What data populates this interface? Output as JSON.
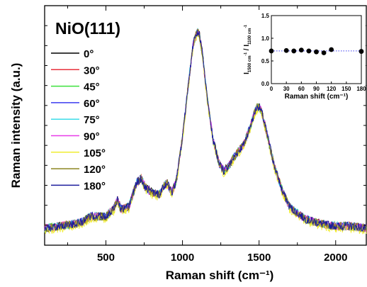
{
  "chart_data": [
    {
      "type": "line",
      "title": "NiO(111)",
      "xlabel": "Raman shift (cm⁻¹)",
      "ylabel": "Raman intensity (a.u.)",
      "xlim": [
        100,
        2200
      ],
      "xticks": [
        500,
        1000,
        1500,
        2000
      ],
      "ylim": [
        0,
        1
      ],
      "yticks_labeled": false,
      "grid": false,
      "legend_position": "left",
      "x": [
        100,
        200,
        300,
        350,
        400,
        450,
        500,
        550,
        575,
        600,
        650,
        700,
        730,
        760,
        800,
        850,
        880,
        900,
        930,
        960,
        1000,
        1040,
        1070,
        1090,
        1100,
        1110,
        1130,
        1160,
        1200,
        1240,
        1270,
        1300,
        1350,
        1400,
        1450,
        1480,
        1500,
        1520,
        1550,
        1600,
        1650,
        1700,
        1800,
        1900,
        2000,
        2100,
        2200
      ],
      "series": [
        {
          "name": "0°",
          "color": "#000000",
          "values": [
            0.07,
            0.08,
            0.09,
            0.1,
            0.12,
            0.12,
            0.12,
            0.15,
            0.19,
            0.15,
            0.16,
            0.26,
            0.28,
            0.24,
            0.22,
            0.21,
            0.25,
            0.26,
            0.22,
            0.27,
            0.45,
            0.68,
            0.84,
            0.88,
            0.89,
            0.88,
            0.8,
            0.62,
            0.44,
            0.34,
            0.31,
            0.33,
            0.38,
            0.42,
            0.51,
            0.57,
            0.58,
            0.55,
            0.47,
            0.33,
            0.23,
            0.16,
            0.11,
            0.09,
            0.08,
            0.08,
            0.07
          ]
        },
        {
          "name": "30°",
          "color": "#e8323c",
          "values": [
            0.07,
            0.08,
            0.09,
            0.1,
            0.12,
            0.12,
            0.12,
            0.15,
            0.19,
            0.15,
            0.16,
            0.26,
            0.28,
            0.24,
            0.22,
            0.21,
            0.25,
            0.26,
            0.22,
            0.27,
            0.45,
            0.68,
            0.84,
            0.88,
            0.89,
            0.88,
            0.8,
            0.62,
            0.44,
            0.34,
            0.31,
            0.33,
            0.38,
            0.42,
            0.51,
            0.57,
            0.58,
            0.55,
            0.47,
            0.33,
            0.23,
            0.16,
            0.11,
            0.09,
            0.08,
            0.08,
            0.07
          ]
        },
        {
          "name": "45°",
          "color": "#3ce03c",
          "values": [
            0.07,
            0.08,
            0.09,
            0.1,
            0.12,
            0.12,
            0.12,
            0.15,
            0.19,
            0.15,
            0.16,
            0.26,
            0.28,
            0.24,
            0.22,
            0.21,
            0.25,
            0.26,
            0.22,
            0.27,
            0.45,
            0.68,
            0.84,
            0.88,
            0.89,
            0.88,
            0.8,
            0.62,
            0.44,
            0.34,
            0.31,
            0.33,
            0.38,
            0.42,
            0.51,
            0.57,
            0.58,
            0.55,
            0.47,
            0.33,
            0.23,
            0.16,
            0.11,
            0.09,
            0.08,
            0.08,
            0.07
          ]
        },
        {
          "name": "60°",
          "color": "#3c3cf0",
          "values": [
            0.07,
            0.08,
            0.09,
            0.1,
            0.12,
            0.12,
            0.12,
            0.15,
            0.19,
            0.15,
            0.16,
            0.26,
            0.28,
            0.24,
            0.22,
            0.21,
            0.25,
            0.26,
            0.22,
            0.27,
            0.45,
            0.68,
            0.84,
            0.88,
            0.89,
            0.88,
            0.8,
            0.62,
            0.44,
            0.34,
            0.31,
            0.33,
            0.38,
            0.42,
            0.51,
            0.57,
            0.58,
            0.55,
            0.47,
            0.33,
            0.23,
            0.16,
            0.11,
            0.09,
            0.08,
            0.08,
            0.07
          ]
        },
        {
          "name": "75°",
          "color": "#3cdce8",
          "values": [
            0.07,
            0.08,
            0.09,
            0.1,
            0.12,
            0.12,
            0.12,
            0.15,
            0.19,
            0.15,
            0.16,
            0.26,
            0.28,
            0.24,
            0.22,
            0.21,
            0.25,
            0.26,
            0.22,
            0.27,
            0.45,
            0.68,
            0.84,
            0.88,
            0.89,
            0.88,
            0.8,
            0.62,
            0.44,
            0.34,
            0.31,
            0.33,
            0.38,
            0.42,
            0.51,
            0.57,
            0.58,
            0.55,
            0.47,
            0.33,
            0.23,
            0.16,
            0.11,
            0.09,
            0.08,
            0.08,
            0.07
          ]
        },
        {
          "name": "90°",
          "color": "#e83ce8",
          "values": [
            0.07,
            0.08,
            0.09,
            0.1,
            0.12,
            0.12,
            0.12,
            0.15,
            0.19,
            0.15,
            0.16,
            0.26,
            0.28,
            0.24,
            0.22,
            0.21,
            0.25,
            0.26,
            0.22,
            0.27,
            0.45,
            0.68,
            0.84,
            0.88,
            0.89,
            0.88,
            0.8,
            0.62,
            0.44,
            0.34,
            0.31,
            0.33,
            0.38,
            0.42,
            0.51,
            0.57,
            0.58,
            0.55,
            0.47,
            0.33,
            0.23,
            0.16,
            0.11,
            0.09,
            0.08,
            0.08,
            0.07
          ]
        },
        {
          "name": "105°",
          "color": "#f0ec30",
          "values": [
            0.06,
            0.07,
            0.08,
            0.09,
            0.11,
            0.11,
            0.11,
            0.14,
            0.18,
            0.14,
            0.15,
            0.25,
            0.27,
            0.23,
            0.21,
            0.2,
            0.24,
            0.25,
            0.21,
            0.26,
            0.44,
            0.67,
            0.83,
            0.87,
            0.88,
            0.87,
            0.79,
            0.61,
            0.43,
            0.33,
            0.3,
            0.32,
            0.37,
            0.41,
            0.5,
            0.56,
            0.57,
            0.54,
            0.46,
            0.32,
            0.22,
            0.15,
            0.1,
            0.08,
            0.07,
            0.07,
            0.06
          ]
        },
        {
          "name": "120°",
          "color": "#8c8420",
          "values": [
            0.07,
            0.08,
            0.09,
            0.1,
            0.12,
            0.12,
            0.12,
            0.15,
            0.19,
            0.15,
            0.16,
            0.26,
            0.28,
            0.24,
            0.22,
            0.21,
            0.25,
            0.26,
            0.22,
            0.27,
            0.45,
            0.68,
            0.84,
            0.88,
            0.89,
            0.88,
            0.8,
            0.62,
            0.44,
            0.34,
            0.31,
            0.33,
            0.38,
            0.42,
            0.51,
            0.57,
            0.58,
            0.55,
            0.47,
            0.33,
            0.23,
            0.16,
            0.11,
            0.09,
            0.08,
            0.08,
            0.07
          ]
        },
        {
          "name": "180°",
          "color": "#1c1c9c",
          "values": [
            0.07,
            0.08,
            0.09,
            0.1,
            0.12,
            0.12,
            0.12,
            0.15,
            0.19,
            0.15,
            0.16,
            0.26,
            0.28,
            0.24,
            0.22,
            0.21,
            0.25,
            0.26,
            0.22,
            0.27,
            0.45,
            0.68,
            0.84,
            0.88,
            0.89,
            0.88,
            0.8,
            0.62,
            0.44,
            0.34,
            0.31,
            0.33,
            0.38,
            0.42,
            0.51,
            0.57,
            0.58,
            0.55,
            0.47,
            0.33,
            0.23,
            0.16,
            0.11,
            0.09,
            0.08,
            0.08,
            0.07
          ]
        }
      ]
    },
    {
      "type": "scatter",
      "xlabel": "Raman shift (cm⁻¹)",
      "ylabel_main": "I",
      "ylabel_sub1": "1500 cm",
      "ylabel_sup1": "-1",
      "ylabel_sep": " / I",
      "ylabel_sub2": "1100 cm",
      "ylabel_sup2": "-1",
      "xlim": [
        0,
        180
      ],
      "ylim": [
        0,
        1.5
      ],
      "xticks": [
        0,
        30,
        60,
        90,
        120,
        150,
        180
      ],
      "yticks": [
        "0.0",
        "0.5",
        "1.0",
        "1.5"
      ],
      "x": [
        0,
        30,
        45,
        60,
        75,
        90,
        105,
        120,
        180
      ],
      "y": [
        0.72,
        0.73,
        0.72,
        0.74,
        0.72,
        0.7,
        0.68,
        0.75,
        0.71
      ],
      "reference_line": 0.72,
      "reference_line_style": "dotted",
      "reference_line_color": "#3c3cf0"
    }
  ]
}
